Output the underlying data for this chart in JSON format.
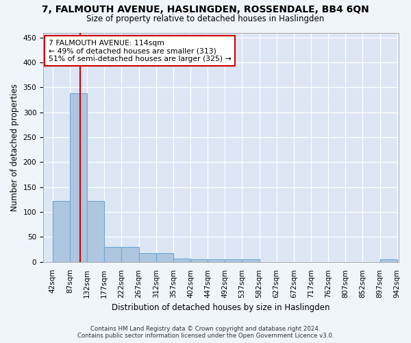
{
  "title": "7, FALMOUTH AVENUE, HASLINGDEN, ROSSENDALE, BB4 6QN",
  "subtitle": "Size of property relative to detached houses in Haslingden",
  "xlabel": "Distribution of detached houses by size in Haslingden",
  "ylabel": "Number of detached properties",
  "bin_edges": [
    42,
    87,
    132,
    177,
    222,
    267,
    312,
    357,
    402,
    447,
    492,
    537,
    582,
    627,
    672,
    717,
    762,
    807,
    852,
    897,
    942
  ],
  "bar_heights": [
    122,
    338,
    122,
    30,
    30,
    17,
    17,
    7,
    5,
    5,
    5,
    5,
    0,
    0,
    0,
    0,
    0,
    0,
    0,
    5
  ],
  "bar_color": "#aec6e0",
  "bar_edge_color": "#6fa8d0",
  "property_size": 114,
  "annotation_title": "7 FALMOUTH AVENUE: 114sqm",
  "annotation_line1": "← 49% of detached houses are smaller (313)",
  "annotation_line2": "51% of semi-detached houses are larger (325) →",
  "annotation_box_color": "#ffffff",
  "annotation_box_edge": "#cc0000",
  "red_line_color": "#cc0000",
  "ylim": [
    0,
    460
  ],
  "yticks": [
    0,
    50,
    100,
    150,
    200,
    250,
    300,
    350,
    400,
    450
  ],
  "background_color": "#dce6f5",
  "grid_color": "#ffffff",
  "fig_background": "#f0f4fb",
  "footer_line1": "Contains HM Land Registry data © Crown copyright and database right 2024.",
  "footer_line2": "Contains public sector information licensed under the Open Government Licence v3.0."
}
